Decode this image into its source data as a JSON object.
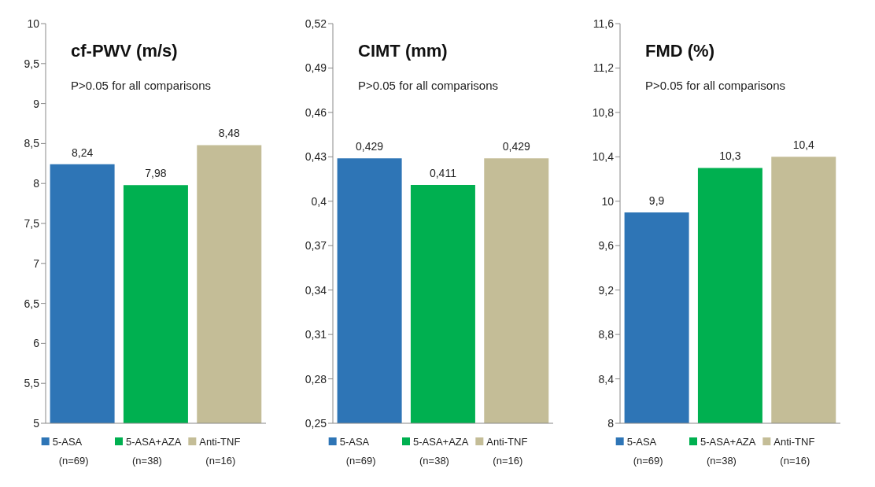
{
  "chart_data": [
    {
      "type": "bar",
      "title": "cf-PWV (m/s)",
      "subtitle": "P>0.05 for all comparisons",
      "categories": [
        "5-ASA\n(n=69)",
        "5-ASA+AZA\n(n=38)",
        "Anti-TNF\n(n=16)"
      ],
      "values": [
        8.24,
        7.98,
        8.48
      ],
      "colors": [
        "#2e75b6",
        "#00b050",
        "#c4bd97"
      ],
      "value_labels": [
        "8,24",
        "7,98",
        "8,48"
      ],
      "ylim": [
        5,
        10
      ],
      "yticks": [
        {
          "value": 5,
          "label": "5"
        },
        {
          "value": 5.5,
          "label": "5,5"
        },
        {
          "value": 6,
          "label": "6"
        },
        {
          "value": 6.5,
          "label": "6,5"
        },
        {
          "value": 7,
          "label": "7"
        },
        {
          "value": 7.5,
          "label": "7,5"
        },
        {
          "value": 8,
          "label": "8"
        },
        {
          "value": 8.5,
          "label": "8,5"
        },
        {
          "value": 9,
          "label": "9"
        },
        {
          "value": 9.5,
          "label": "9,5"
        },
        {
          "value": 10,
          "label": "10"
        }
      ]
    },
    {
      "type": "bar",
      "title": "CIMT (mm)",
      "subtitle": "P>0.05 for all comparisons",
      "categories": [
        "5-ASA\n(n=69)",
        "5-ASA+AZA\n(n=38)",
        "Anti-TNF\n(n=16)"
      ],
      "values": [
        0.429,
        0.411,
        0.429
      ],
      "colors": [
        "#2e75b6",
        "#00b050",
        "#c4bd97"
      ],
      "value_labels": [
        "0,429",
        "0,411",
        "0,429"
      ],
      "ylim": [
        0.25,
        0.52
      ],
      "yticks": [
        {
          "value": 0.25,
          "label": "0,25"
        },
        {
          "value": 0.28,
          "label": "0,28"
        },
        {
          "value": 0.31,
          "label": "0,31"
        },
        {
          "value": 0.34,
          "label": "0,34"
        },
        {
          "value": 0.37,
          "label": "0,37"
        },
        {
          "value": 0.4,
          "label": "0,4"
        },
        {
          "value": 0.43,
          "label": "0,43"
        },
        {
          "value": 0.46,
          "label": "0,46"
        },
        {
          "value": 0.49,
          "label": "0,49"
        },
        {
          "value": 0.52,
          "label": "0,52"
        }
      ]
    },
    {
      "type": "bar",
      "title": "FMD (%)",
      "subtitle": "P>0.05 for all comparisons",
      "categories": [
        "5-ASA\n(n=69)",
        "5-ASA+AZA\n(n=38)",
        "Anti-TNF\n(n=16)"
      ],
      "values": [
        9.9,
        10.3,
        10.4
      ],
      "colors": [
        "#2e75b6",
        "#00b050",
        "#c4bd97"
      ],
      "value_labels": [
        "9,9",
        "10,3",
        "10,4"
      ],
      "ylim": [
        8,
        11.6
      ],
      "yticks": [
        {
          "value": 8,
          "label": "8"
        },
        {
          "value": 8.4,
          "label": "8,4"
        },
        {
          "value": 8.8,
          "label": "8,8"
        },
        {
          "value": 9.2,
          "label": "9,2"
        },
        {
          "value": 9.6,
          "label": "9,6"
        },
        {
          "value": 10,
          "label": "10"
        },
        {
          "value": 10.4,
          "label": "10,4"
        },
        {
          "value": 10.8,
          "label": "10,8"
        },
        {
          "value": 11.2,
          "label": "11,2"
        },
        {
          "value": 11.6,
          "label": "11,6"
        }
      ]
    }
  ]
}
